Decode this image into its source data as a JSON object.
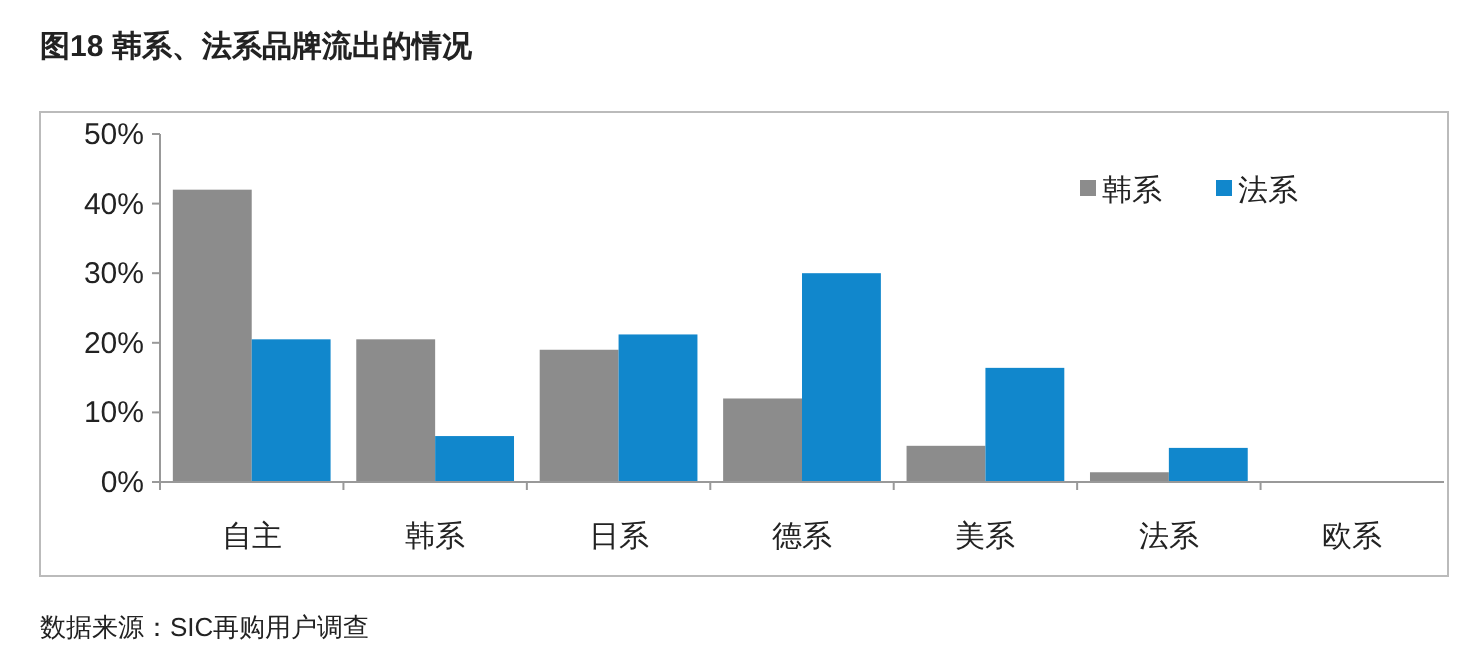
{
  "chart_data": {
    "type": "bar",
    "title": "图18 韩系、法系品牌流出的情况",
    "categories": [
      "自主",
      "韩系",
      "日系",
      "德系",
      "美系",
      "法系",
      "欧系"
    ],
    "series": [
      {
        "name": "韩系",
        "color": "#8c8c8c",
        "values": [
          42,
          20.5,
          19,
          12,
          5.2,
          1.4,
          0
        ]
      },
      {
        "name": "法系",
        "color": "#1187cc",
        "values": [
          20.5,
          6.6,
          21.2,
          30,
          16.4,
          4.9,
          0
        ]
      }
    ],
    "ylim": [
      0,
      50
    ],
    "yticks": [
      {
        "value": 0,
        "label": "0%"
      },
      {
        "value": 10,
        "label": "10%"
      },
      {
        "value": 20,
        "label": "20%"
      },
      {
        "value": 30,
        "label": "30%"
      },
      {
        "value": 40,
        "label": "40%"
      },
      {
        "value": 50,
        "label": "50%"
      }
    ],
    "grid": false,
    "legend": "top right",
    "annotations": [
      "数据来源：SIC再购用户调查"
    ]
  }
}
